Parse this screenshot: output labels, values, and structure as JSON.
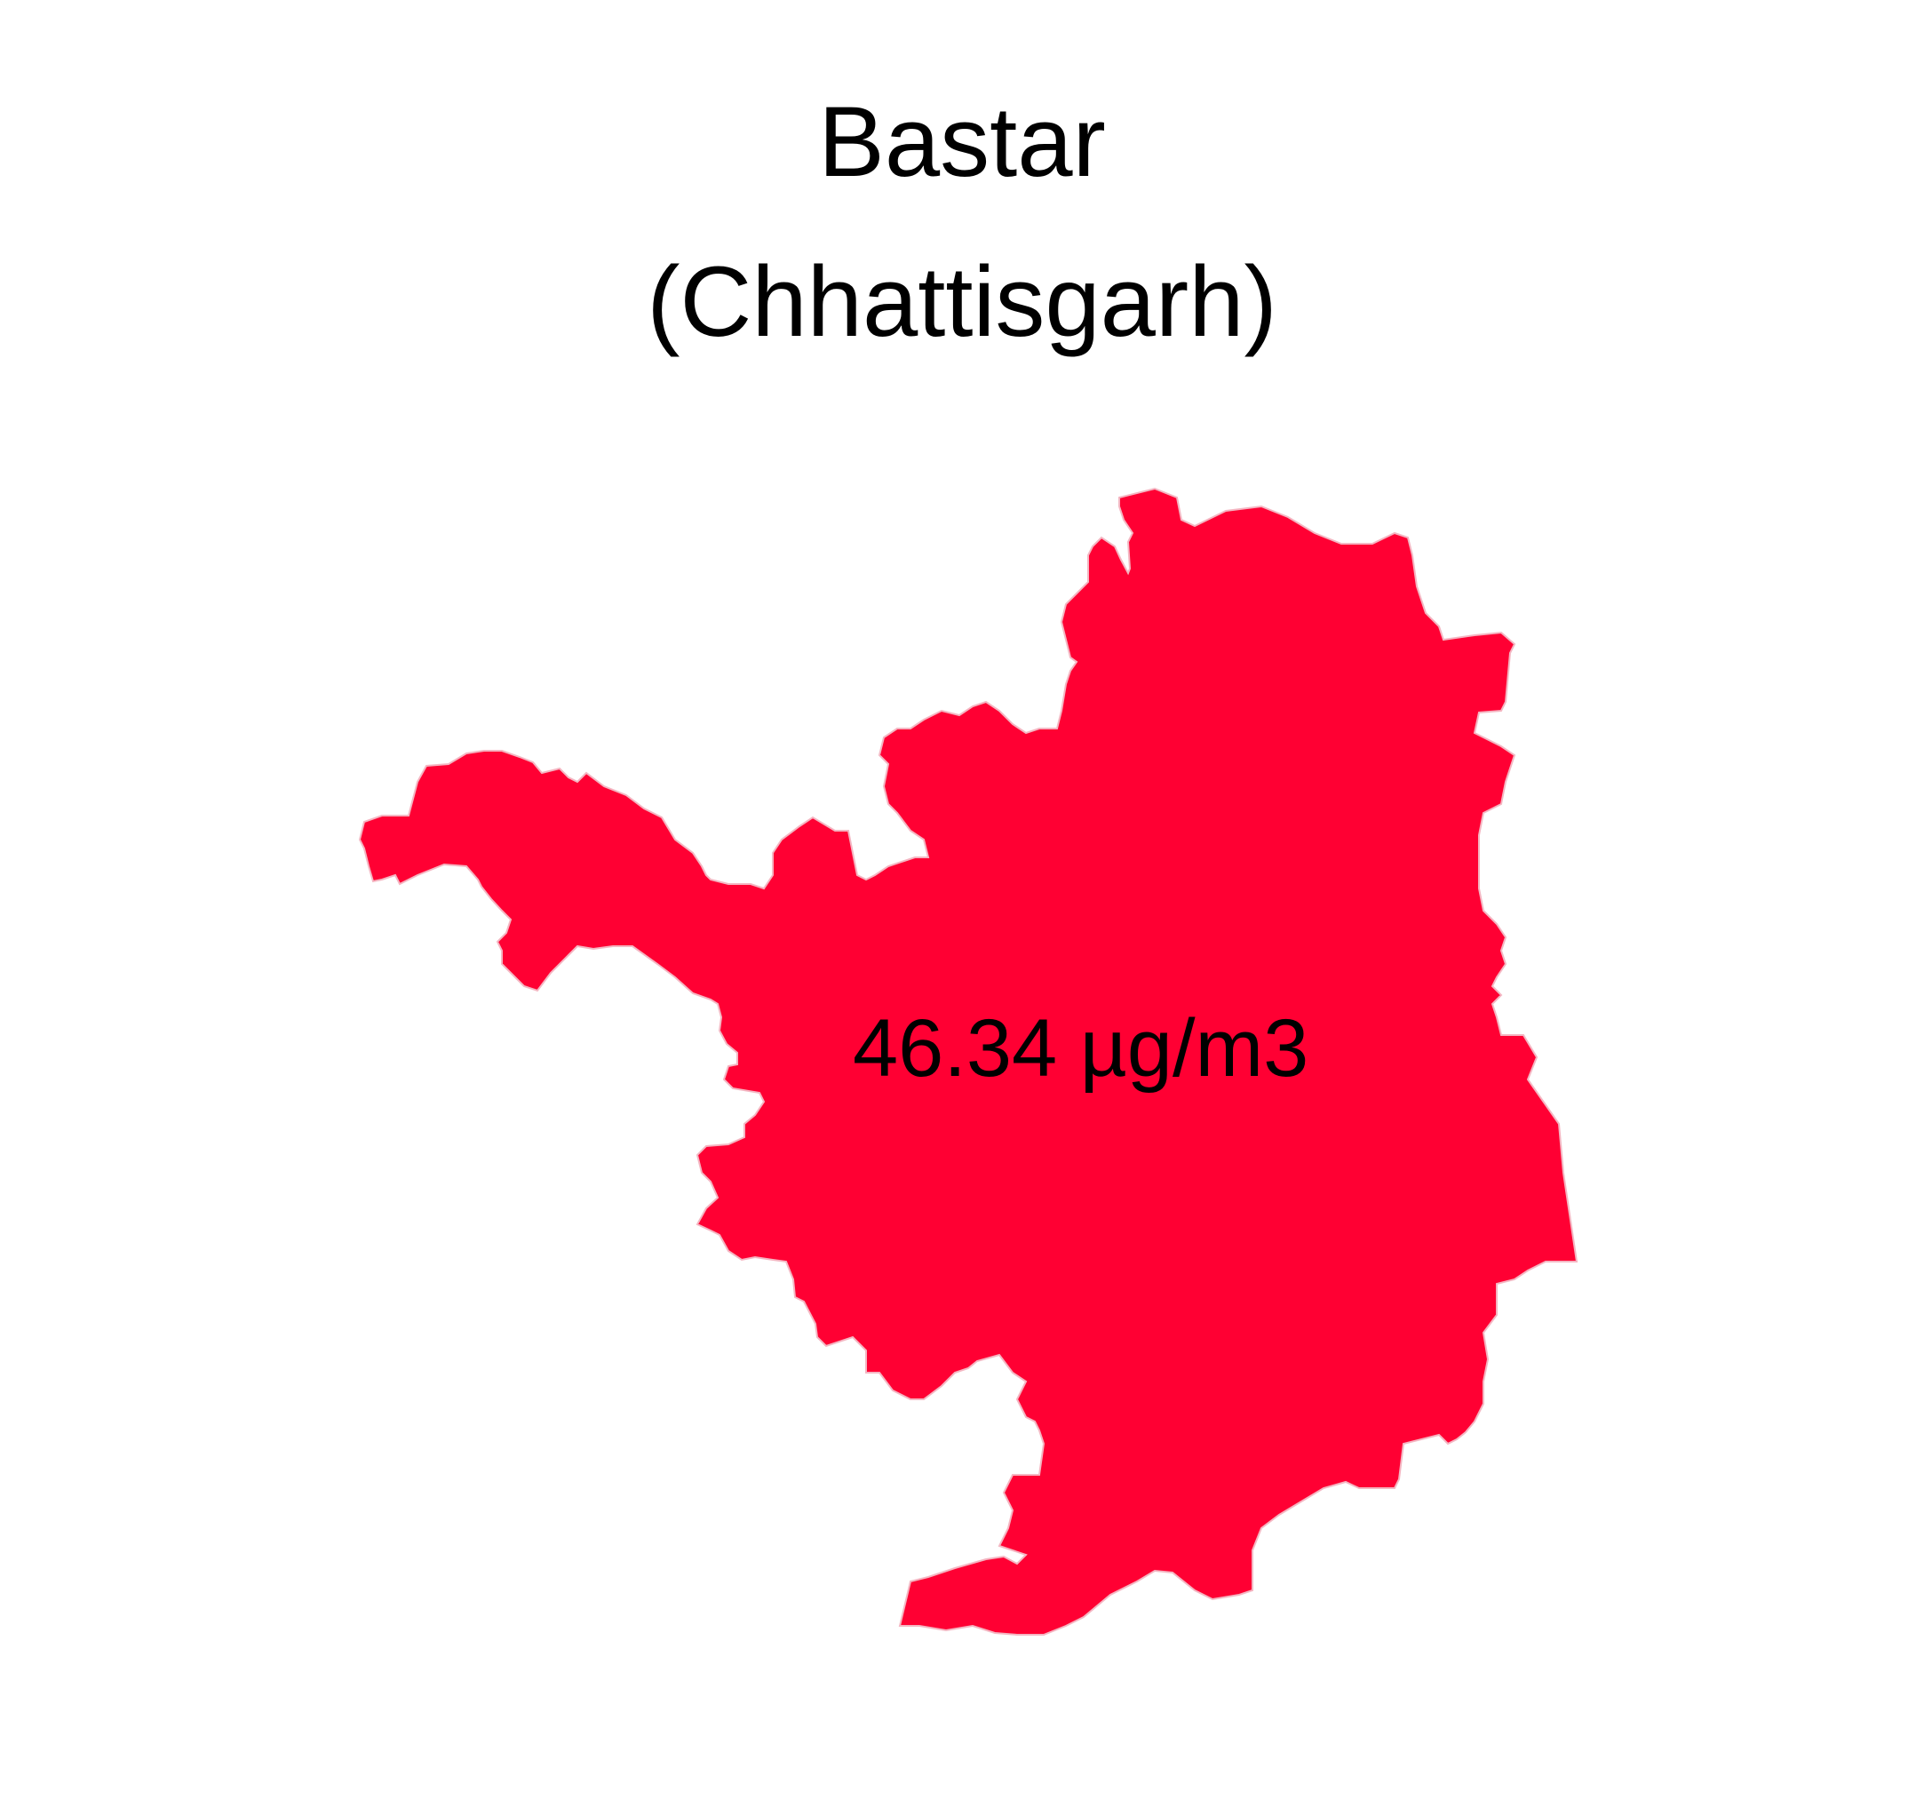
{
  "map": {
    "title": "Bastar",
    "subtitle": "(Chhattisgarh)",
    "value_label": "46.34 µg/m3",
    "fill_color": "#FF0033",
    "border_color": "#F4B6C2"
  }
}
